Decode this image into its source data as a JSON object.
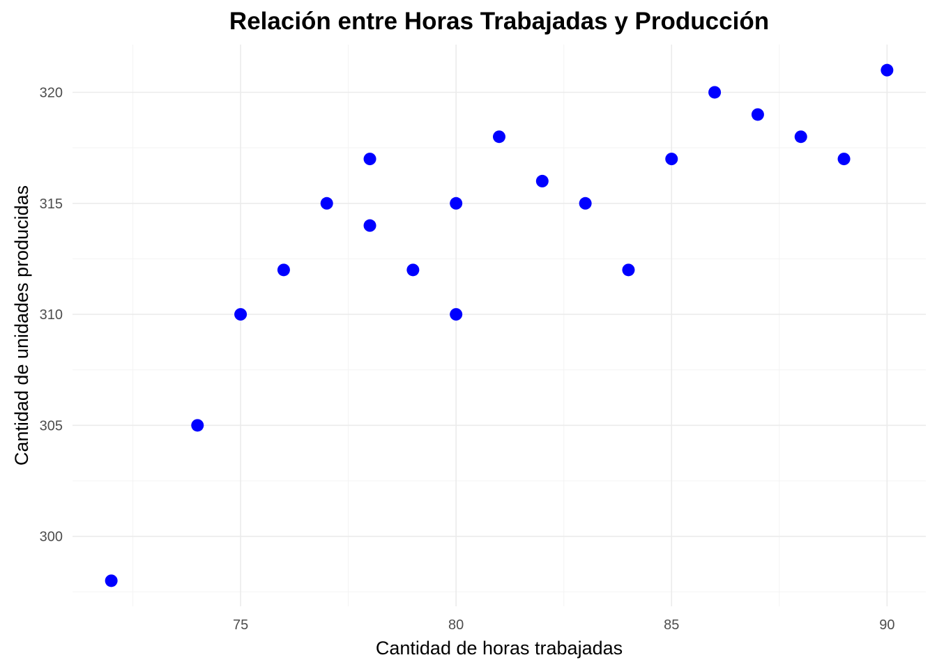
{
  "chart_data": {
    "type": "scatter",
    "title": "Relación entre Horas Trabajadas y Producción",
    "xlabel": "Cantidad de horas trabajadas",
    "ylabel": "Cantidad de unidades producidas",
    "x_ticks": [
      75,
      80,
      85,
      90
    ],
    "y_ticks": [
      300,
      305,
      310,
      315,
      320
    ],
    "xlim": [
      71.1,
      90.9
    ],
    "ylim": [
      296.85,
      322.15
    ],
    "grid": true,
    "point_color": "#0000ff",
    "points": [
      {
        "x": 72,
        "y": 298
      },
      {
        "x": 74,
        "y": 305
      },
      {
        "x": 75,
        "y": 310
      },
      {
        "x": 76,
        "y": 312
      },
      {
        "x": 77,
        "y": 315
      },
      {
        "x": 78,
        "y": 317
      },
      {
        "x": 78,
        "y": 314
      },
      {
        "x": 79,
        "y": 312
      },
      {
        "x": 80,
        "y": 315
      },
      {
        "x": 80,
        "y": 310
      },
      {
        "x": 81,
        "y": 318
      },
      {
        "x": 82,
        "y": 316
      },
      {
        "x": 83,
        "y": 315
      },
      {
        "x": 84,
        "y": 312
      },
      {
        "x": 85,
        "y": 317
      },
      {
        "x": 86,
        "y": 320
      },
      {
        "x": 87,
        "y": 319
      },
      {
        "x": 88,
        "y": 318
      },
      {
        "x": 89,
        "y": 317
      },
      {
        "x": 90,
        "y": 321
      }
    ]
  }
}
